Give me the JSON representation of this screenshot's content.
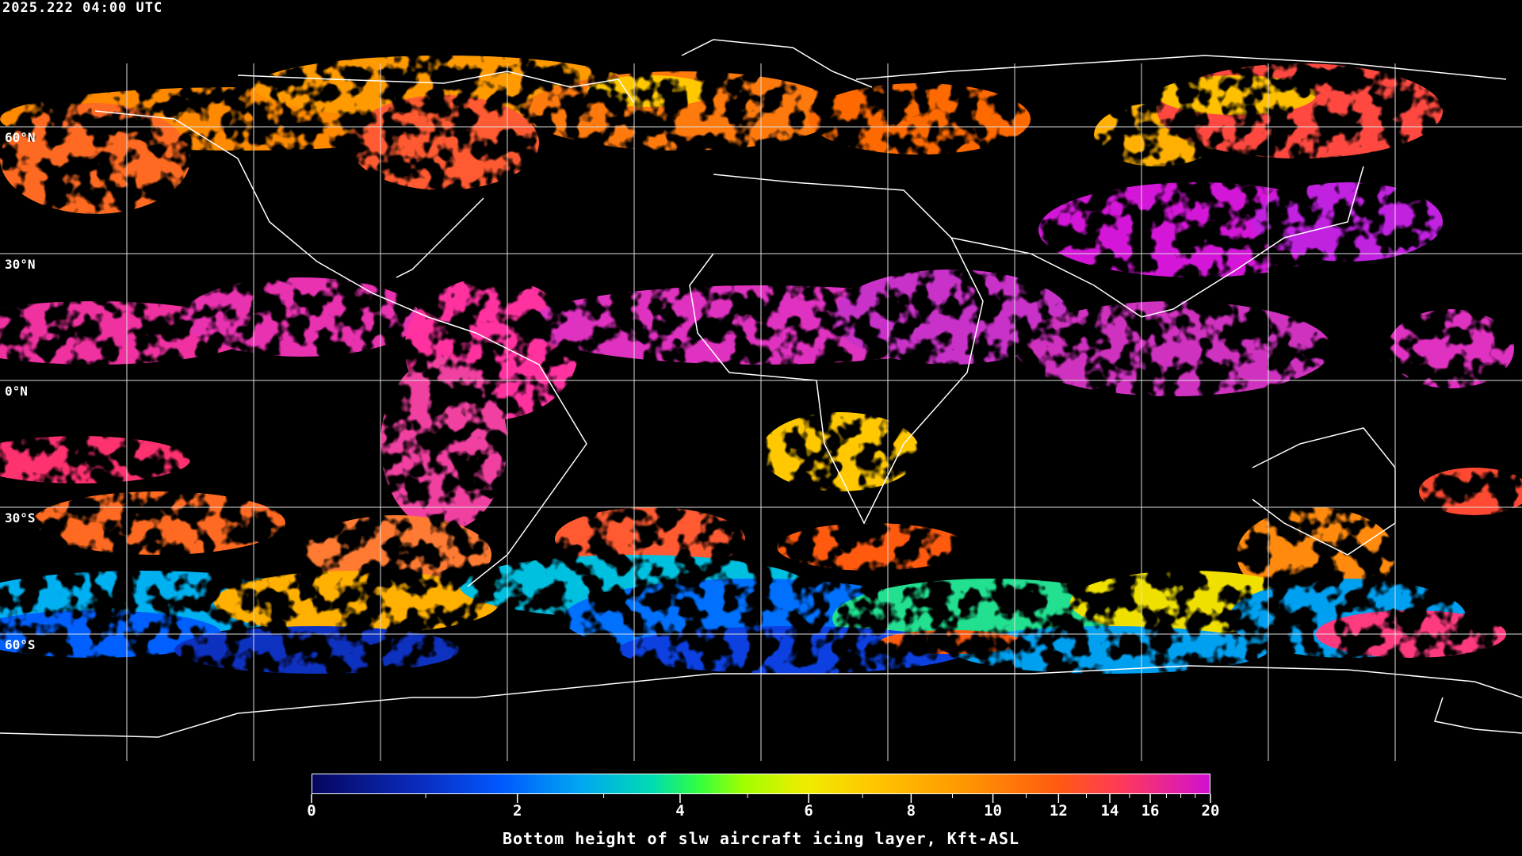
{
  "header": {
    "timestamp": "2025.222 04:00 UTC"
  },
  "map": {
    "projection": "equirectangular",
    "latitude_labels": [
      "60°N",
      "30°N",
      "0°N",
      "30°S",
      "60°S"
    ],
    "gridline_color": "#ffffff",
    "coastline_color": "#ffffff",
    "background": "#000000"
  },
  "colorbar": {
    "label": "Bottom height of slw aircraft icing layer, Kft-ASL",
    "min": 0,
    "max": 20,
    "tick_labels": [
      "0",
      "2",
      "4",
      "6",
      "8",
      "10",
      "12",
      "14",
      "16",
      "20"
    ],
    "minor_ticks": [
      1,
      3,
      5,
      7,
      9,
      11,
      13,
      15,
      17,
      18,
      19
    ],
    "colors": [
      "#06065e",
      "#0058ff",
      "#00a8f0",
      "#00dcb0",
      "#30ff40",
      "#a0ff00",
      "#f0ec00",
      "#ffc800",
      "#ff9a00",
      "#ff5a10",
      "#ff3a58",
      "#d010d0"
    ]
  }
}
